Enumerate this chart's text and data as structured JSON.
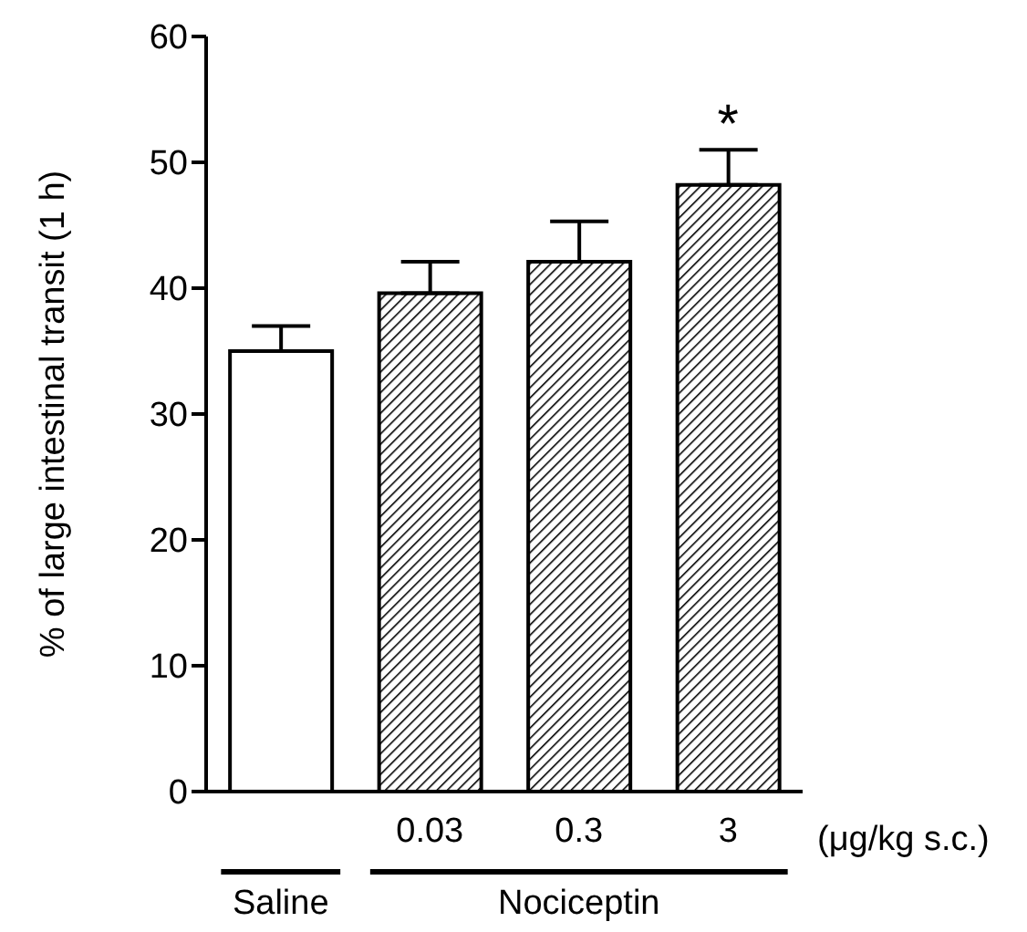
{
  "chart_data": {
    "type": "bar",
    "ylabel": "% of large intestinal transit (1 h)",
    "categories": [
      null,
      "0.03",
      "0.3",
      "3"
    ],
    "values": [
      35,
      39.6,
      42.1,
      48.2
    ],
    "errors": [
      [
        35,
        37
      ],
      [
        39.6,
        42.1
      ],
      [
        42.1,
        45.3
      ],
      [
        48.2,
        51
      ]
    ],
    "colors": [
      "#ffffff",
      "#000000",
      "#000000",
      "#000000"
    ],
    "ylim": [
      0,
      60
    ],
    "yticks": [
      0,
      10,
      20,
      30,
      40,
      50,
      60
    ],
    "grid": false,
    "legend": false,
    "annotations": [
      "(μg/kg s.c.)",
      "Saline",
      "Nociceptin",
      "*"
    ]
  }
}
